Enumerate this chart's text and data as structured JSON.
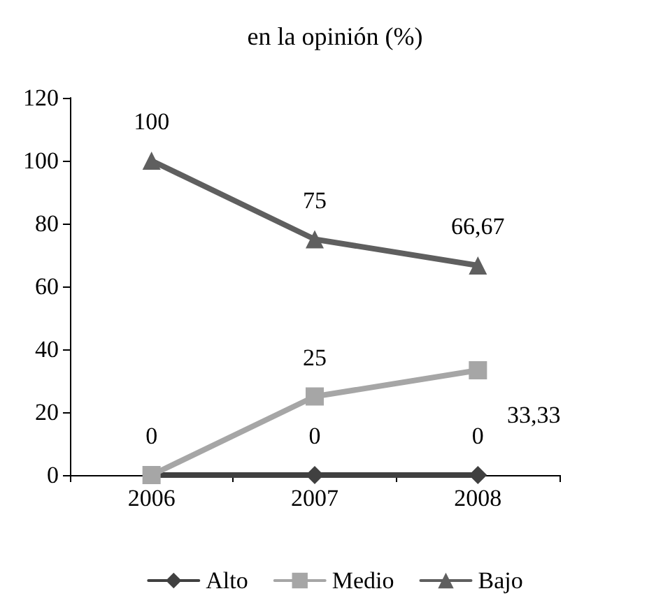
{
  "chart_data": {
    "type": "line",
    "title": "en la opinión (%)",
    "categories": [
      "2006",
      "2007",
      "2008"
    ],
    "series": [
      {
        "name": "Alto",
        "color": "#404040",
        "marker": "diamond",
        "values": [
          0,
          0,
          0
        ],
        "value_labels": [
          null,
          "0",
          "0"
        ]
      },
      {
        "name": "Medio",
        "color": "#a6a6a6",
        "marker": "square",
        "values": [
          0,
          25,
          33.33
        ],
        "value_labels": [
          "0",
          "25",
          "33,33"
        ]
      },
      {
        "name": "Bajo",
        "color": "#5f5f5f",
        "marker": "triangle",
        "values": [
          100,
          75,
          66.67
        ],
        "value_labels": [
          "100",
          "75",
          "66,67"
        ]
      }
    ],
    "ylim": [
      0,
      120
    ],
    "yticks": [
      0,
      20,
      40,
      60,
      80,
      100,
      120
    ],
    "grid": false,
    "legend": "bottom",
    "line_style": "solid"
  }
}
